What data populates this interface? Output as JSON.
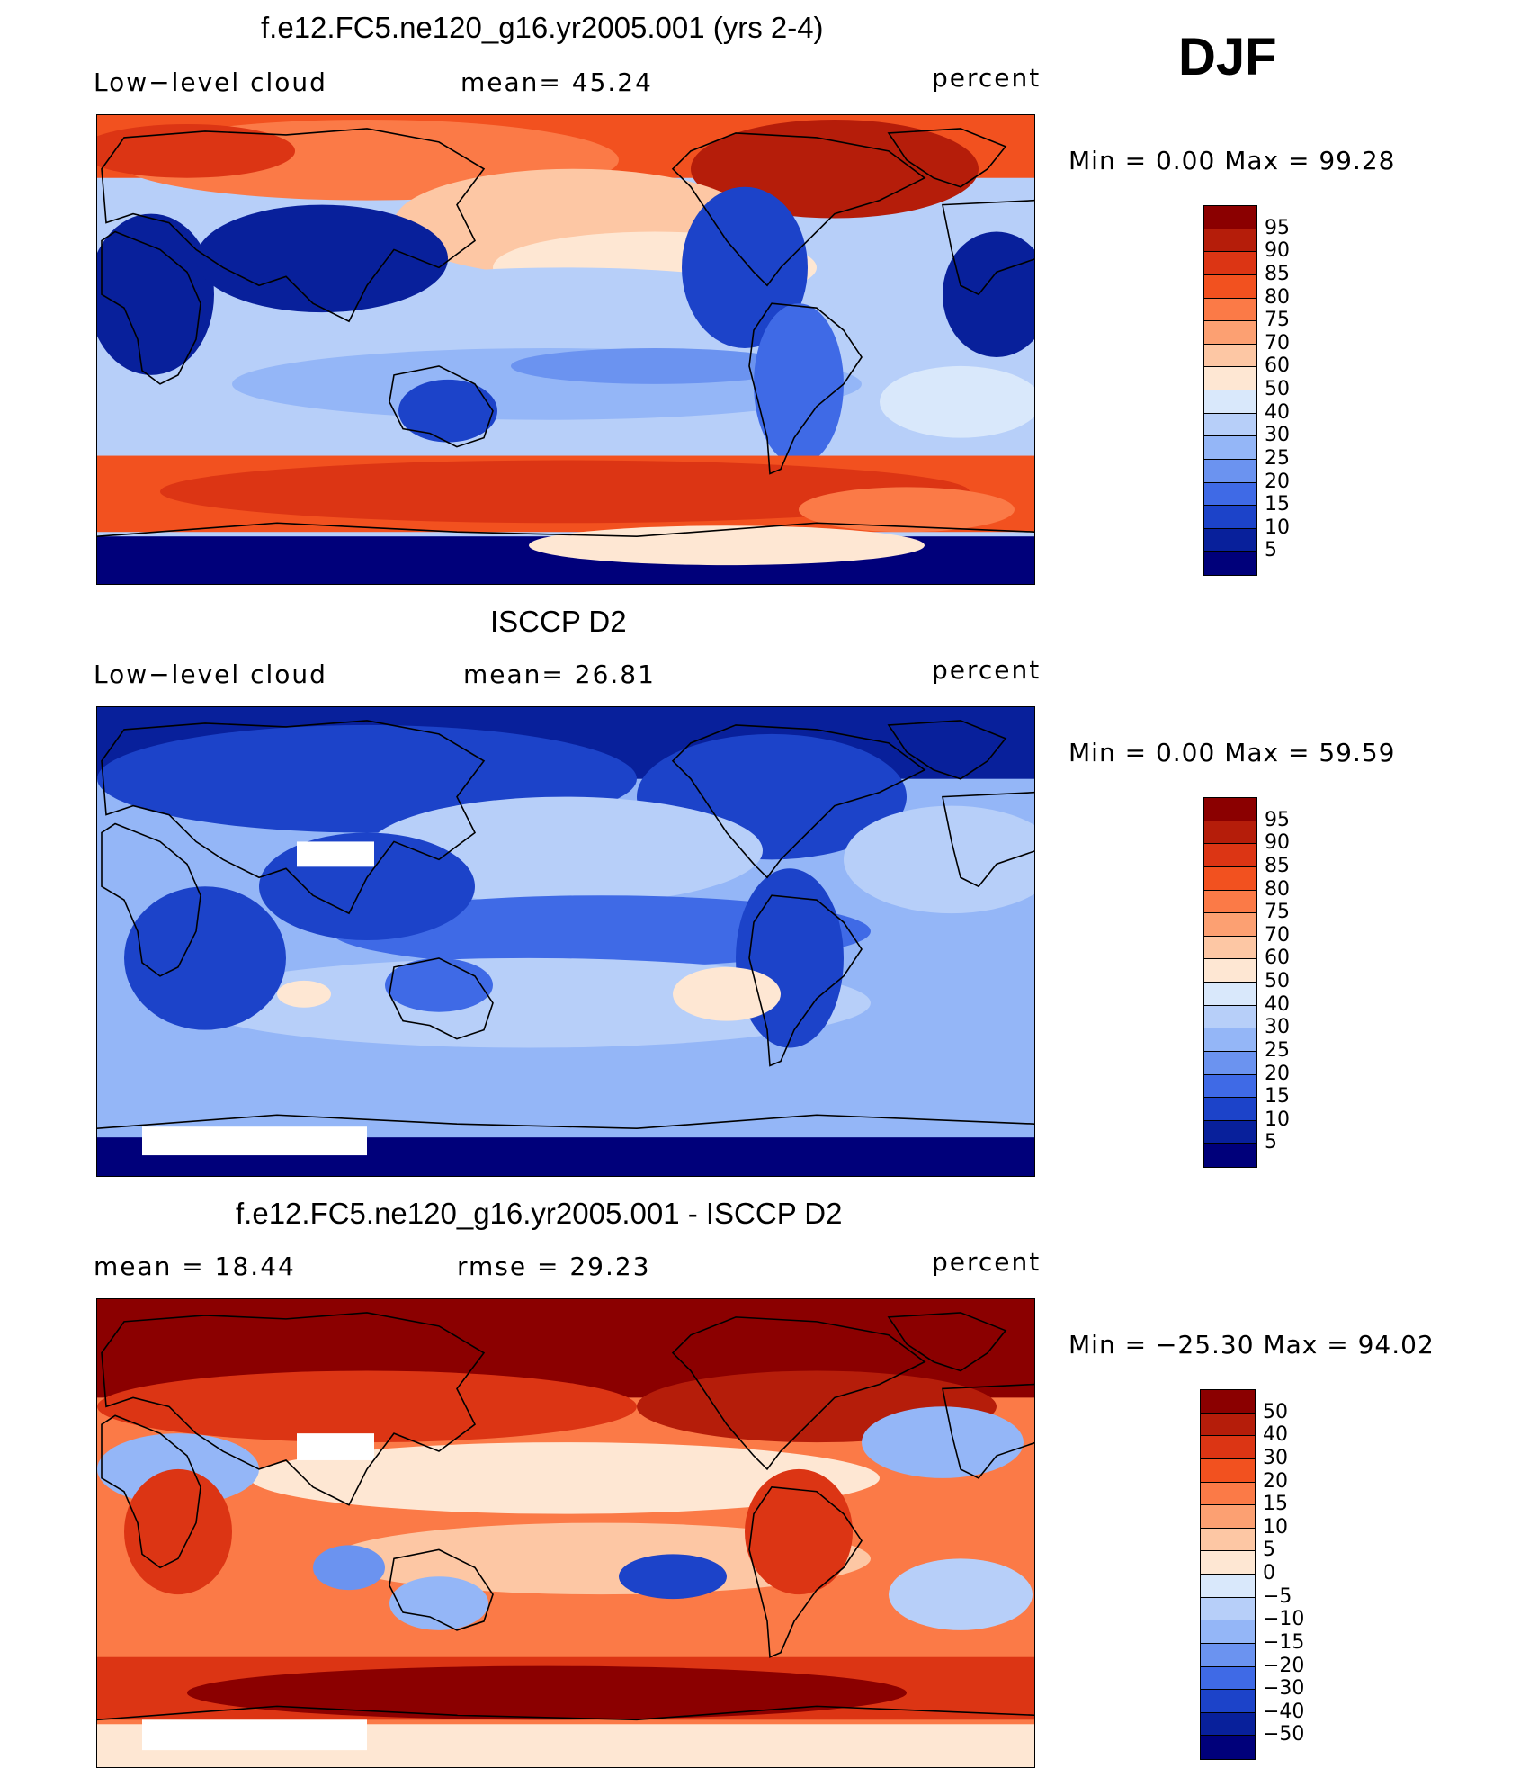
{
  "season": "DJF",
  "panels": [
    {
      "title": "f.e12.FC5.ne120_g16.yr2005.001 (yrs 2-4)",
      "left_text": "Low−level cloud",
      "center_text": "mean=   45.24",
      "right_text": "percent",
      "minmax": "Min =     0.00  Max =    99.28",
      "colorbar_labels": [
        "95",
        "90",
        "85",
        "80",
        "75",
        "70",
        "60",
        "50",
        "40",
        "30",
        "25",
        "20",
        "15",
        "10",
        "5"
      ],
      "colorbar_colors": [
        "#8b0000",
        "#b51d0a",
        "#dc3514",
        "#f2511f",
        "#fb7a47",
        "#fca072",
        "#fdc7a4",
        "#fee7d3",
        "#d9e8fb",
        "#b7cff9",
        "#94b6f7",
        "#6b93f0",
        "#3f6ae6",
        "#1c43c9",
        "#08209b",
        "#00007a"
      ],
      "field": "model"
    },
    {
      "title": "ISCCP D2",
      "left_text": "Low−level cloud",
      "center_text": "mean=   26.81",
      "right_text": "percent",
      "minmax": "Min =     0.00  Max =    59.59",
      "colorbar_labels": [
        "95",
        "90",
        "85",
        "80",
        "75",
        "70",
        "60",
        "50",
        "40",
        "30",
        "25",
        "20",
        "15",
        "10",
        "5"
      ],
      "colorbar_colors": [
        "#8b0000",
        "#b51d0a",
        "#dc3514",
        "#f2511f",
        "#fb7a47",
        "#fca072",
        "#fdc7a4",
        "#fee7d3",
        "#d9e8fb",
        "#b7cff9",
        "#94b6f7",
        "#6b93f0",
        "#3f6ae6",
        "#1c43c9",
        "#08209b",
        "#00007a"
      ],
      "field": "obs"
    },
    {
      "title": "f.e12.FC5.ne120_g16.yr2005.001 - ISCCP D2",
      "left_text": "mean =    18.44",
      "center_text": "rmse =    29.23",
      "right_text": "percent",
      "minmax": "Min = −25.30  Max =    94.02",
      "colorbar_labels": [
        "50",
        "40",
        "30",
        "20",
        "15",
        "10",
        "5",
        "0",
        "−5",
        "−10",
        "−15",
        "−20",
        "−30",
        "−40",
        "−50"
      ],
      "colorbar_colors": [
        "#8b0000",
        "#b51d0a",
        "#dc3514",
        "#f2511f",
        "#fb7a47",
        "#fca072",
        "#fdc7a4",
        "#fee7d3",
        "#d9e8fb",
        "#b7cff9",
        "#94b6f7",
        "#6b93f0",
        "#3f6ae6",
        "#1c43c9",
        "#08209b",
        "#00007a"
      ],
      "field": "diff"
    }
  ],
  "colors": {
    "land_outline": "#000000",
    "missing": "#ffffff"
  }
}
